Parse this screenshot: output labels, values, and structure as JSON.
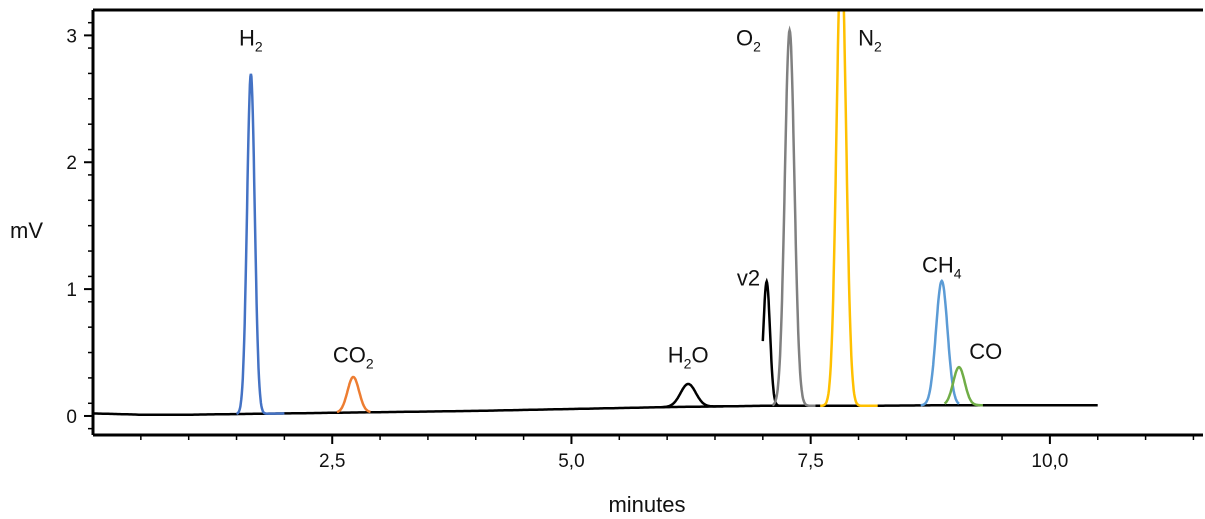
{
  "chart_data": {
    "type": "line",
    "title": "",
    "xlabel": "minutes",
    "ylabel": "mV",
    "xlim": [
      0,
      11.6
    ],
    "ylim": [
      -0.15,
      3.2
    ],
    "x_ticks": [
      {
        "value": 2.5,
        "label": "2,5"
      },
      {
        "value": 5.0,
        "label": "5,0"
      },
      {
        "value": 7.5,
        "label": "7,5"
      },
      {
        "value": 10.0,
        "label": "10,0"
      }
    ],
    "y_ticks": [
      {
        "value": 0,
        "label": "0"
      },
      {
        "value": 1,
        "label": "1"
      },
      {
        "value": 2,
        "label": "2"
      },
      {
        "value": 3,
        "label": "3"
      }
    ],
    "grid": false,
    "legend": "none",
    "baseline": {
      "color": "#000000",
      "x": [
        0.0,
        0.5,
        1.0,
        1.5,
        2.0,
        2.5,
        3.0,
        4.0,
        5.0,
        6.0,
        7.0,
        8.0,
        9.0,
        10.0,
        11.6
      ],
      "y": [
        0.02,
        0.01,
        0.01,
        0.015,
        0.02,
        0.025,
        0.03,
        0.04,
        0.055,
        0.07,
        0.08,
        0.08,
        0.085,
        0.085,
        0.085
      ]
    },
    "peaks": [
      {
        "name": "H",
        "sub": "2",
        "color": "#4472c4",
        "rt": 1.65,
        "height": 2.68,
        "sigma": 0.04,
        "base": 0.015,
        "x_range": [
          1.5,
          2.0
        ]
      },
      {
        "name": "CO",
        "sub": "2",
        "color": "#ed7d31",
        "rt": 2.72,
        "height": 0.28,
        "sigma": 0.06,
        "base": 0.03,
        "x_range": [
          2.55,
          2.9
        ]
      },
      {
        "name": "H",
        "sub": "2",
        "suffix": "O",
        "color": "#000000",
        "rt": 6.22,
        "height": 0.18,
        "sigma": 0.08,
        "base": 0.07,
        "x_range": [
          5.9,
          6.6
        ]
      },
      {
        "name": "v2",
        "sub": "",
        "color": "#000000",
        "rt": 7.04,
        "height": 0.98,
        "sigma": 0.035,
        "base": 0.08,
        "x_range": [
          7.0,
          7.2
        ]
      },
      {
        "name": "O",
        "sub": "2",
        "color": "#808080",
        "rt": 7.28,
        "height": 2.96,
        "sigma": 0.05,
        "base": 0.1,
        "x_range": [
          7.1,
          7.55
        ]
      },
      {
        "name": "N",
        "sub": "2",
        "color": "#ffc000",
        "rt": 7.82,
        "height": 3.6,
        "sigma": 0.05,
        "base": 0.08,
        "x_range": [
          7.6,
          8.2
        ]
      },
      {
        "name": "CH",
        "sub": "4",
        "color": "#5b9bd5",
        "rt": 8.87,
        "height": 0.98,
        "sigma": 0.06,
        "base": 0.085,
        "x_range": [
          8.65,
          9.05
        ]
      },
      {
        "name": "CO",
        "sub": "",
        "color": "#70ad47",
        "rt": 9.05,
        "height": 0.3,
        "sigma": 0.06,
        "base": 0.085,
        "x_range": [
          8.9,
          9.3
        ]
      }
    ],
    "peak_labels": [
      {
        "text": "H",
        "sub": "2",
        "x": 1.65,
        "y": 2.92
      },
      {
        "text": "CO",
        "sub": "2",
        "x": 2.72,
        "y": 0.42
      },
      {
        "text": "H",
        "sub": "2",
        "suffix": "O",
        "x": 6.22,
        "y": 0.42
      },
      {
        "text": "v2",
        "sub": "",
        "x": 6.85,
        "y": 1.03
      },
      {
        "text": "O",
        "sub": "2",
        "x": 6.85,
        "y": 2.92
      },
      {
        "text": "N",
        "sub": "2",
        "x": 8.12,
        "y": 2.92
      },
      {
        "text": "CH",
        "sub": "4",
        "x": 8.87,
        "y": 1.13
      },
      {
        "text": "CO",
        "sub": "",
        "x": 9.33,
        "y": 0.45
      }
    ]
  }
}
